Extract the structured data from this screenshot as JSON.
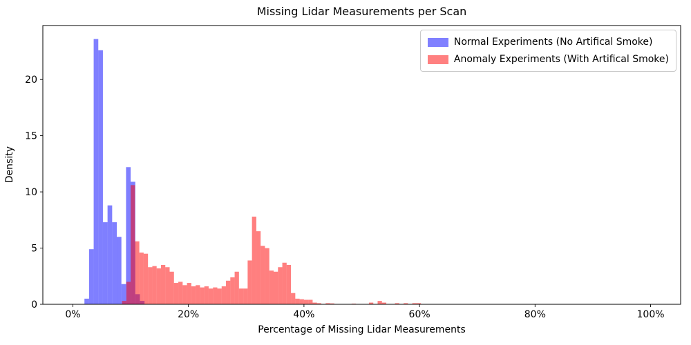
{
  "chart_data": {
    "type": "histogram",
    "title": "Missing Lidar Measurements per Scan",
    "xlabel": "Percentage of Missing Lidar Measurements",
    "ylabel": "Density",
    "xlim_percent": [
      -5.2,
      105.2
    ],
    "ylim": [
      0,
      24.8
    ],
    "grid": false,
    "legend_position": "upper right",
    "x_ticks": [
      {
        "value": 0,
        "label": "0%"
      },
      {
        "value": 20,
        "label": "20%"
      },
      {
        "value": 40,
        "label": "40%"
      },
      {
        "value": 60,
        "label": "60%"
      },
      {
        "value": 80,
        "label": "80%"
      },
      {
        "value": 100,
        "label": "100%"
      }
    ],
    "y_ticks": [
      0,
      5,
      10,
      15,
      20
    ],
    "series": [
      {
        "name": "Normal Experiments (No Artifical Smoke)",
        "color": "#0000ff",
        "opacity": 0.5,
        "legend_color": "#8080ff",
        "bin_width_percent": 0.8,
        "bins": [
          [
            2.0,
            0.5
          ],
          [
            2.8,
            4.9
          ],
          [
            3.6,
            23.6
          ],
          [
            4.4,
            22.6
          ],
          [
            5.2,
            7.3
          ],
          [
            6.0,
            8.8
          ],
          [
            6.8,
            7.3
          ],
          [
            7.6,
            6.0
          ],
          [
            8.4,
            1.8
          ],
          [
            9.2,
            12.2
          ],
          [
            10.0,
            10.9
          ],
          [
            10.8,
            0.9
          ],
          [
            11.6,
            0.3
          ]
        ]
      },
      {
        "name": "Anomaly Experiments (With Artifical Smoke)",
        "color": "#ff0000",
        "opacity": 0.5,
        "legend_color": "#ff8080",
        "bin_width_percent": 0.75,
        "bins": [
          [
            8.5,
            0.3
          ],
          [
            9.25,
            2.0
          ],
          [
            10.0,
            10.6
          ],
          [
            10.75,
            5.6
          ],
          [
            11.5,
            4.6
          ],
          [
            12.25,
            4.5
          ],
          [
            13.0,
            3.3
          ],
          [
            13.75,
            3.4
          ],
          [
            14.5,
            3.2
          ],
          [
            15.25,
            3.5
          ],
          [
            16.0,
            3.3
          ],
          [
            16.75,
            2.9
          ],
          [
            17.5,
            1.9
          ],
          [
            18.25,
            2.0
          ],
          [
            19.0,
            1.7
          ],
          [
            19.75,
            1.9
          ],
          [
            20.5,
            1.6
          ],
          [
            21.25,
            1.7
          ],
          [
            22.0,
            1.5
          ],
          [
            22.75,
            1.6
          ],
          [
            23.5,
            1.4
          ],
          [
            24.25,
            1.5
          ],
          [
            25.0,
            1.4
          ],
          [
            25.75,
            1.6
          ],
          [
            26.5,
            2.1
          ],
          [
            27.25,
            2.4
          ],
          [
            28.0,
            2.9
          ],
          [
            28.75,
            1.4
          ],
          [
            29.5,
            1.4
          ],
          [
            30.25,
            3.9
          ],
          [
            31.0,
            7.8
          ],
          [
            31.75,
            6.5
          ],
          [
            32.5,
            5.2
          ],
          [
            33.25,
            5.0
          ],
          [
            34.0,
            3.0
          ],
          [
            34.75,
            2.9
          ],
          [
            35.5,
            3.3
          ],
          [
            36.25,
            3.7
          ],
          [
            37.0,
            3.5
          ],
          [
            37.75,
            1.0
          ],
          [
            38.5,
            0.5
          ],
          [
            39.25,
            0.45
          ],
          [
            40.0,
            0.4
          ],
          [
            40.75,
            0.4
          ],
          [
            41.5,
            0.15
          ],
          [
            42.25,
            0.1
          ],
          [
            43.75,
            0.1
          ],
          [
            44.5,
            0.08
          ],
          [
            48.25,
            0.06
          ],
          [
            51.25,
            0.15
          ],
          [
            52.75,
            0.3
          ],
          [
            53.5,
            0.15
          ],
          [
            55.75,
            0.1
          ],
          [
            57.25,
            0.1
          ],
          [
            58.75,
            0.1
          ],
          [
            59.5,
            0.1
          ]
        ]
      }
    ]
  }
}
